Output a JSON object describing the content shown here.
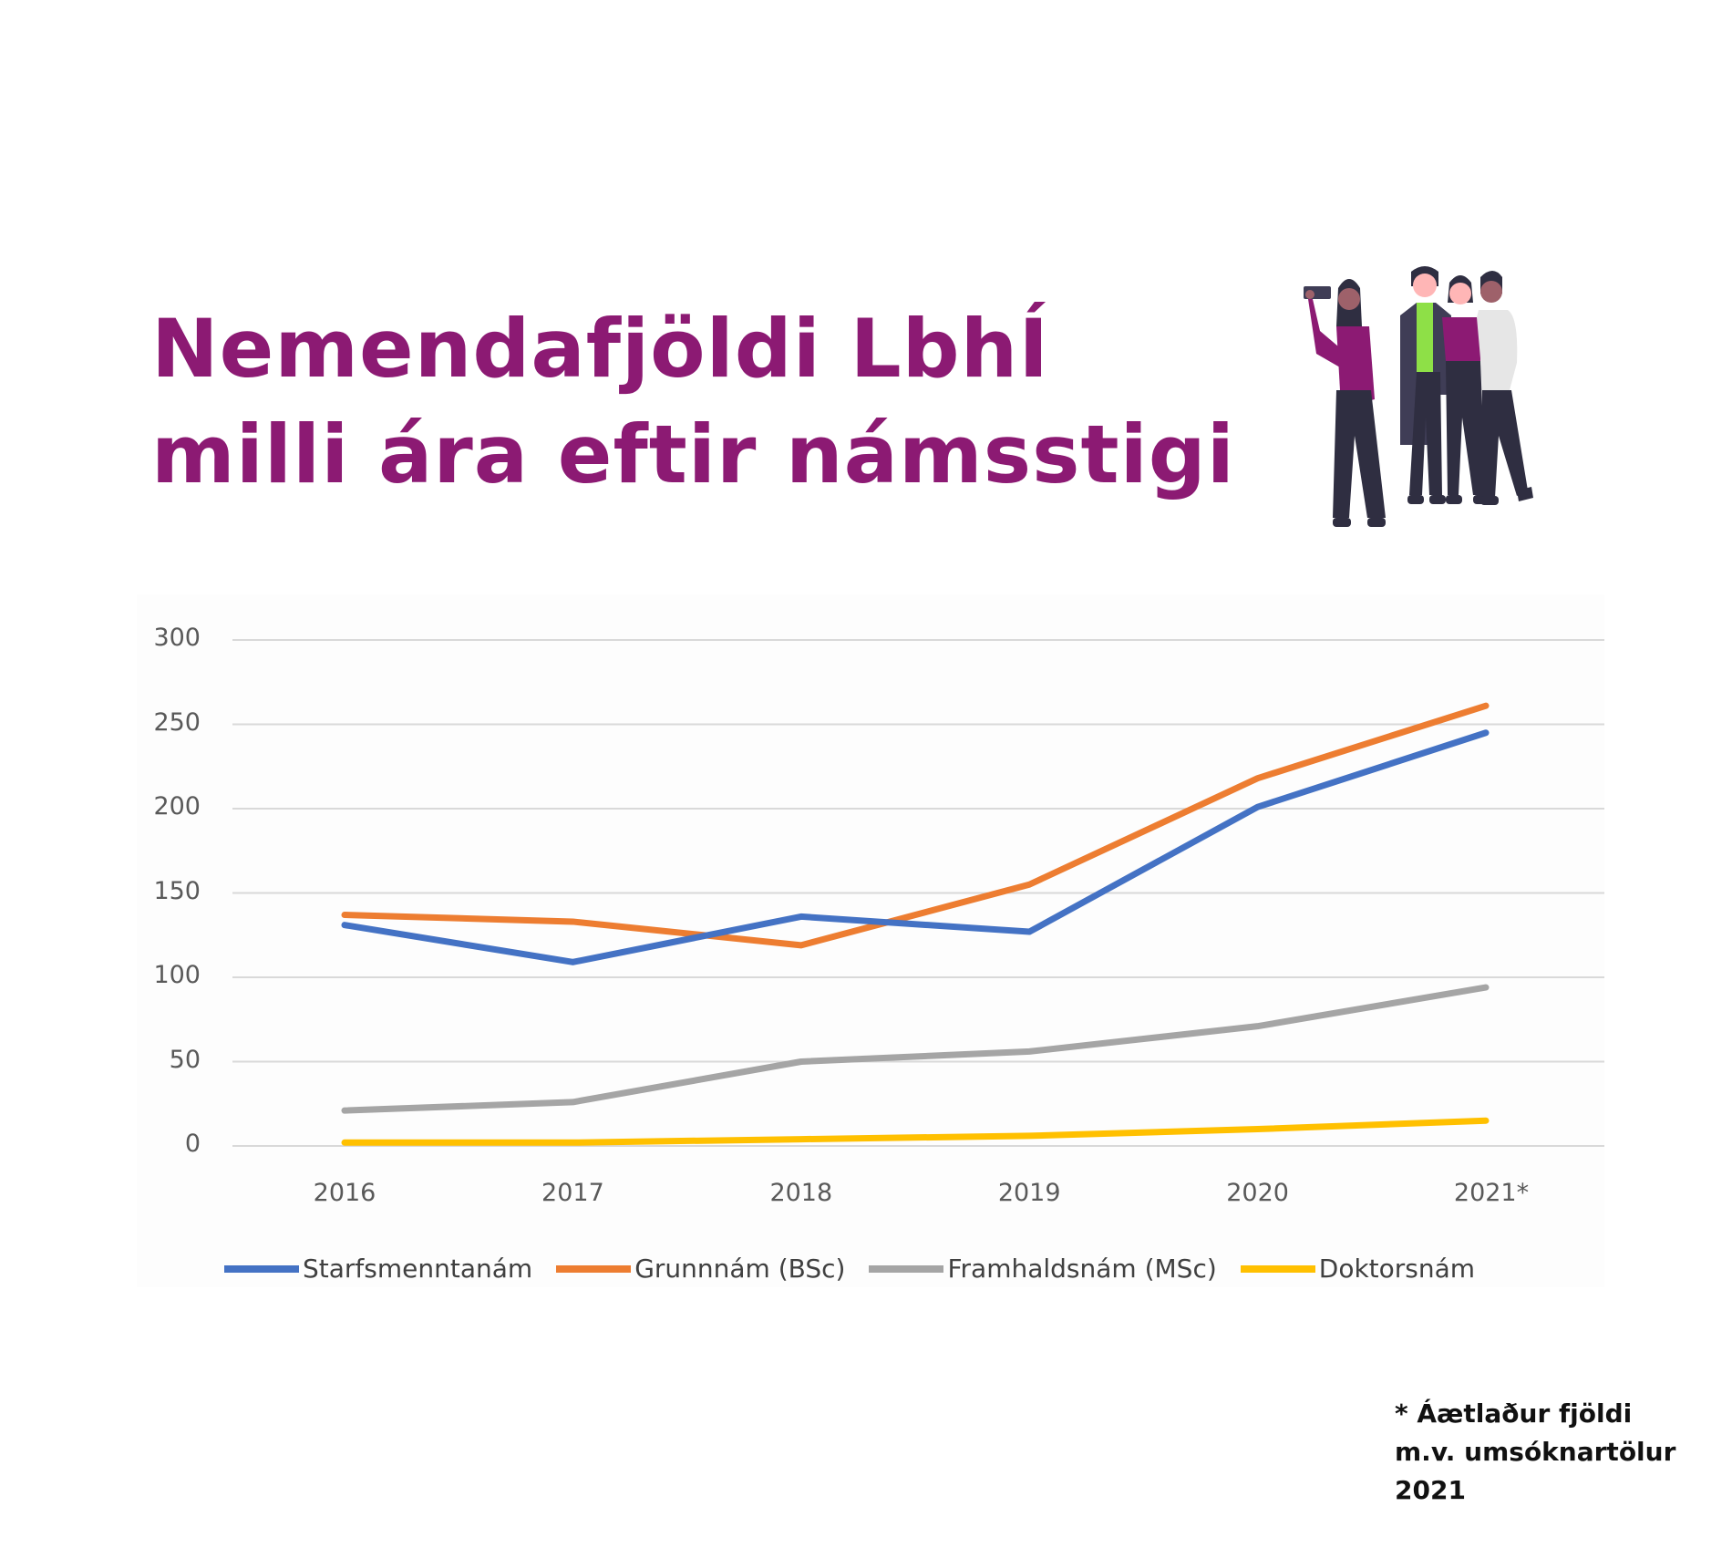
{
  "title": {
    "line1": "Nemendafjöldi LbhÍ",
    "line2": "milli ára eftir námsstigi",
    "color": "#8c1a73"
  },
  "illustration": {
    "name": "group-of-people-taking-selfie-illustration"
  },
  "chart_data": {
    "type": "line",
    "title": "Nemendafjöldi LbhÍ milli ára eftir námsstigi",
    "xlabel": "",
    "ylabel": "",
    "categories": [
      "2016",
      "2017",
      "2018",
      "2019",
      "2020",
      "2021*"
    ],
    "yticks": [
      "300",
      "250",
      "200",
      "150",
      "100",
      "50",
      "0"
    ],
    "ylim": [
      0,
      300
    ],
    "grid": true,
    "legend_position": "bottom",
    "series": [
      {
        "name": "Starfsmenntanám",
        "color": "#4472c4",
        "values": [
          131,
          109,
          136,
          127,
          201,
          245
        ]
      },
      {
        "name": "Grunnnám (BSc)",
        "color": "#ed7d31",
        "values": [
          137,
          133,
          119,
          155,
          218,
          261
        ]
      },
      {
        "name": "Framhaldsnám (MSc)",
        "color": "#a5a5a5",
        "values": [
          21,
          26,
          50,
          56,
          71,
          94
        ]
      },
      {
        "name": "Doktorsnám",
        "color": "#ffc000",
        "values": [
          2,
          2,
          4,
          6,
          10,
          15
        ]
      }
    ]
  },
  "footnote": {
    "line1": "* Áætlaður fjöldi",
    "line2": "m.v. umsóknartölur",
    "line3": "2021"
  }
}
